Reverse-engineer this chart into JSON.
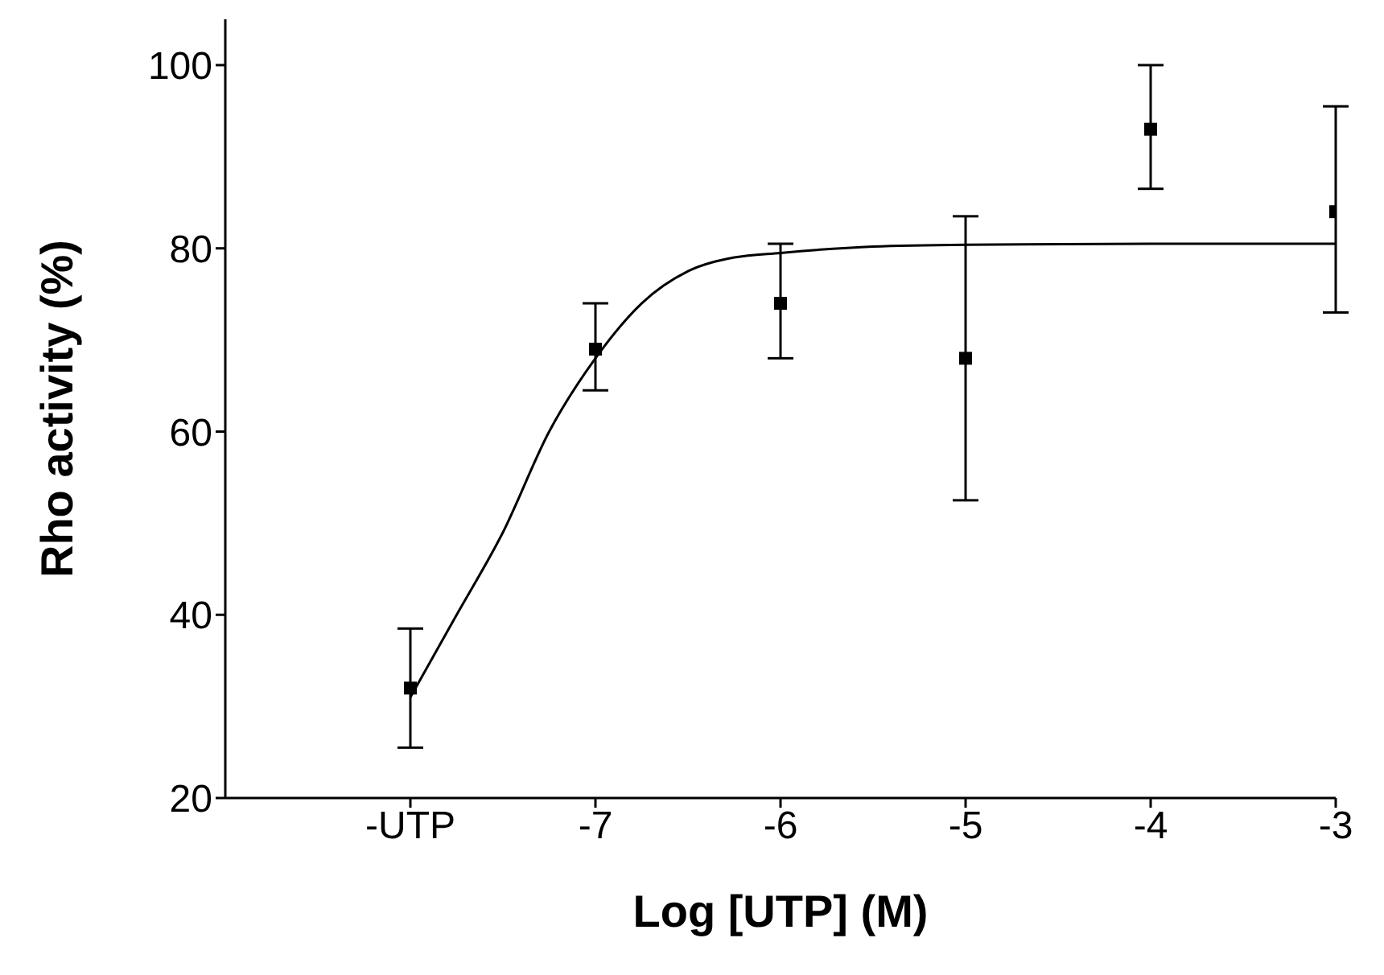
{
  "chart_data": {
    "type": "scatter",
    "xlabel": "Log [UTP] (M)",
    "ylabel": "Rho activity  (%)",
    "xlim": [
      -9,
      -3
    ],
    "xticks": [
      {
        "value": -8,
        "label": "-UTP"
      },
      -7,
      -6,
      -5,
      -4,
      -3
    ],
    "ylim": [
      20,
      105
    ],
    "yticks": [
      20,
      40,
      60,
      80,
      100
    ],
    "grid": false,
    "legend": false,
    "series": [
      {
        "marker": "square",
        "color": "#000000",
        "x": [
          -8,
          -7,
          -6,
          -5,
          -4,
          -3
        ],
        "values": [
          32,
          69,
          74,
          68,
          93,
          84
        ],
        "errors": [
          [
            25.5,
            38.5
          ],
          [
            64.5,
            74
          ],
          [
            68,
            80.5
          ],
          [
            52.5,
            83.5
          ],
          [
            86.5,
            100
          ],
          [
            73,
            95.5
          ]
        ]
      },
      {
        "type": "line",
        "marker": "none",
        "color": "#000000",
        "x": [
          -8,
          -7.75,
          -7.5,
          -7.25,
          -7,
          -6.75,
          -6.5,
          -6.25,
          -6,
          -5.5,
          -5,
          -4,
          -3
        ],
        "values": [
          31,
          40,
          49,
          60,
          68,
          74,
          77.5,
          79,
          79.5,
          80.2,
          80.4,
          80.5,
          80.5
        ]
      }
    ]
  }
}
